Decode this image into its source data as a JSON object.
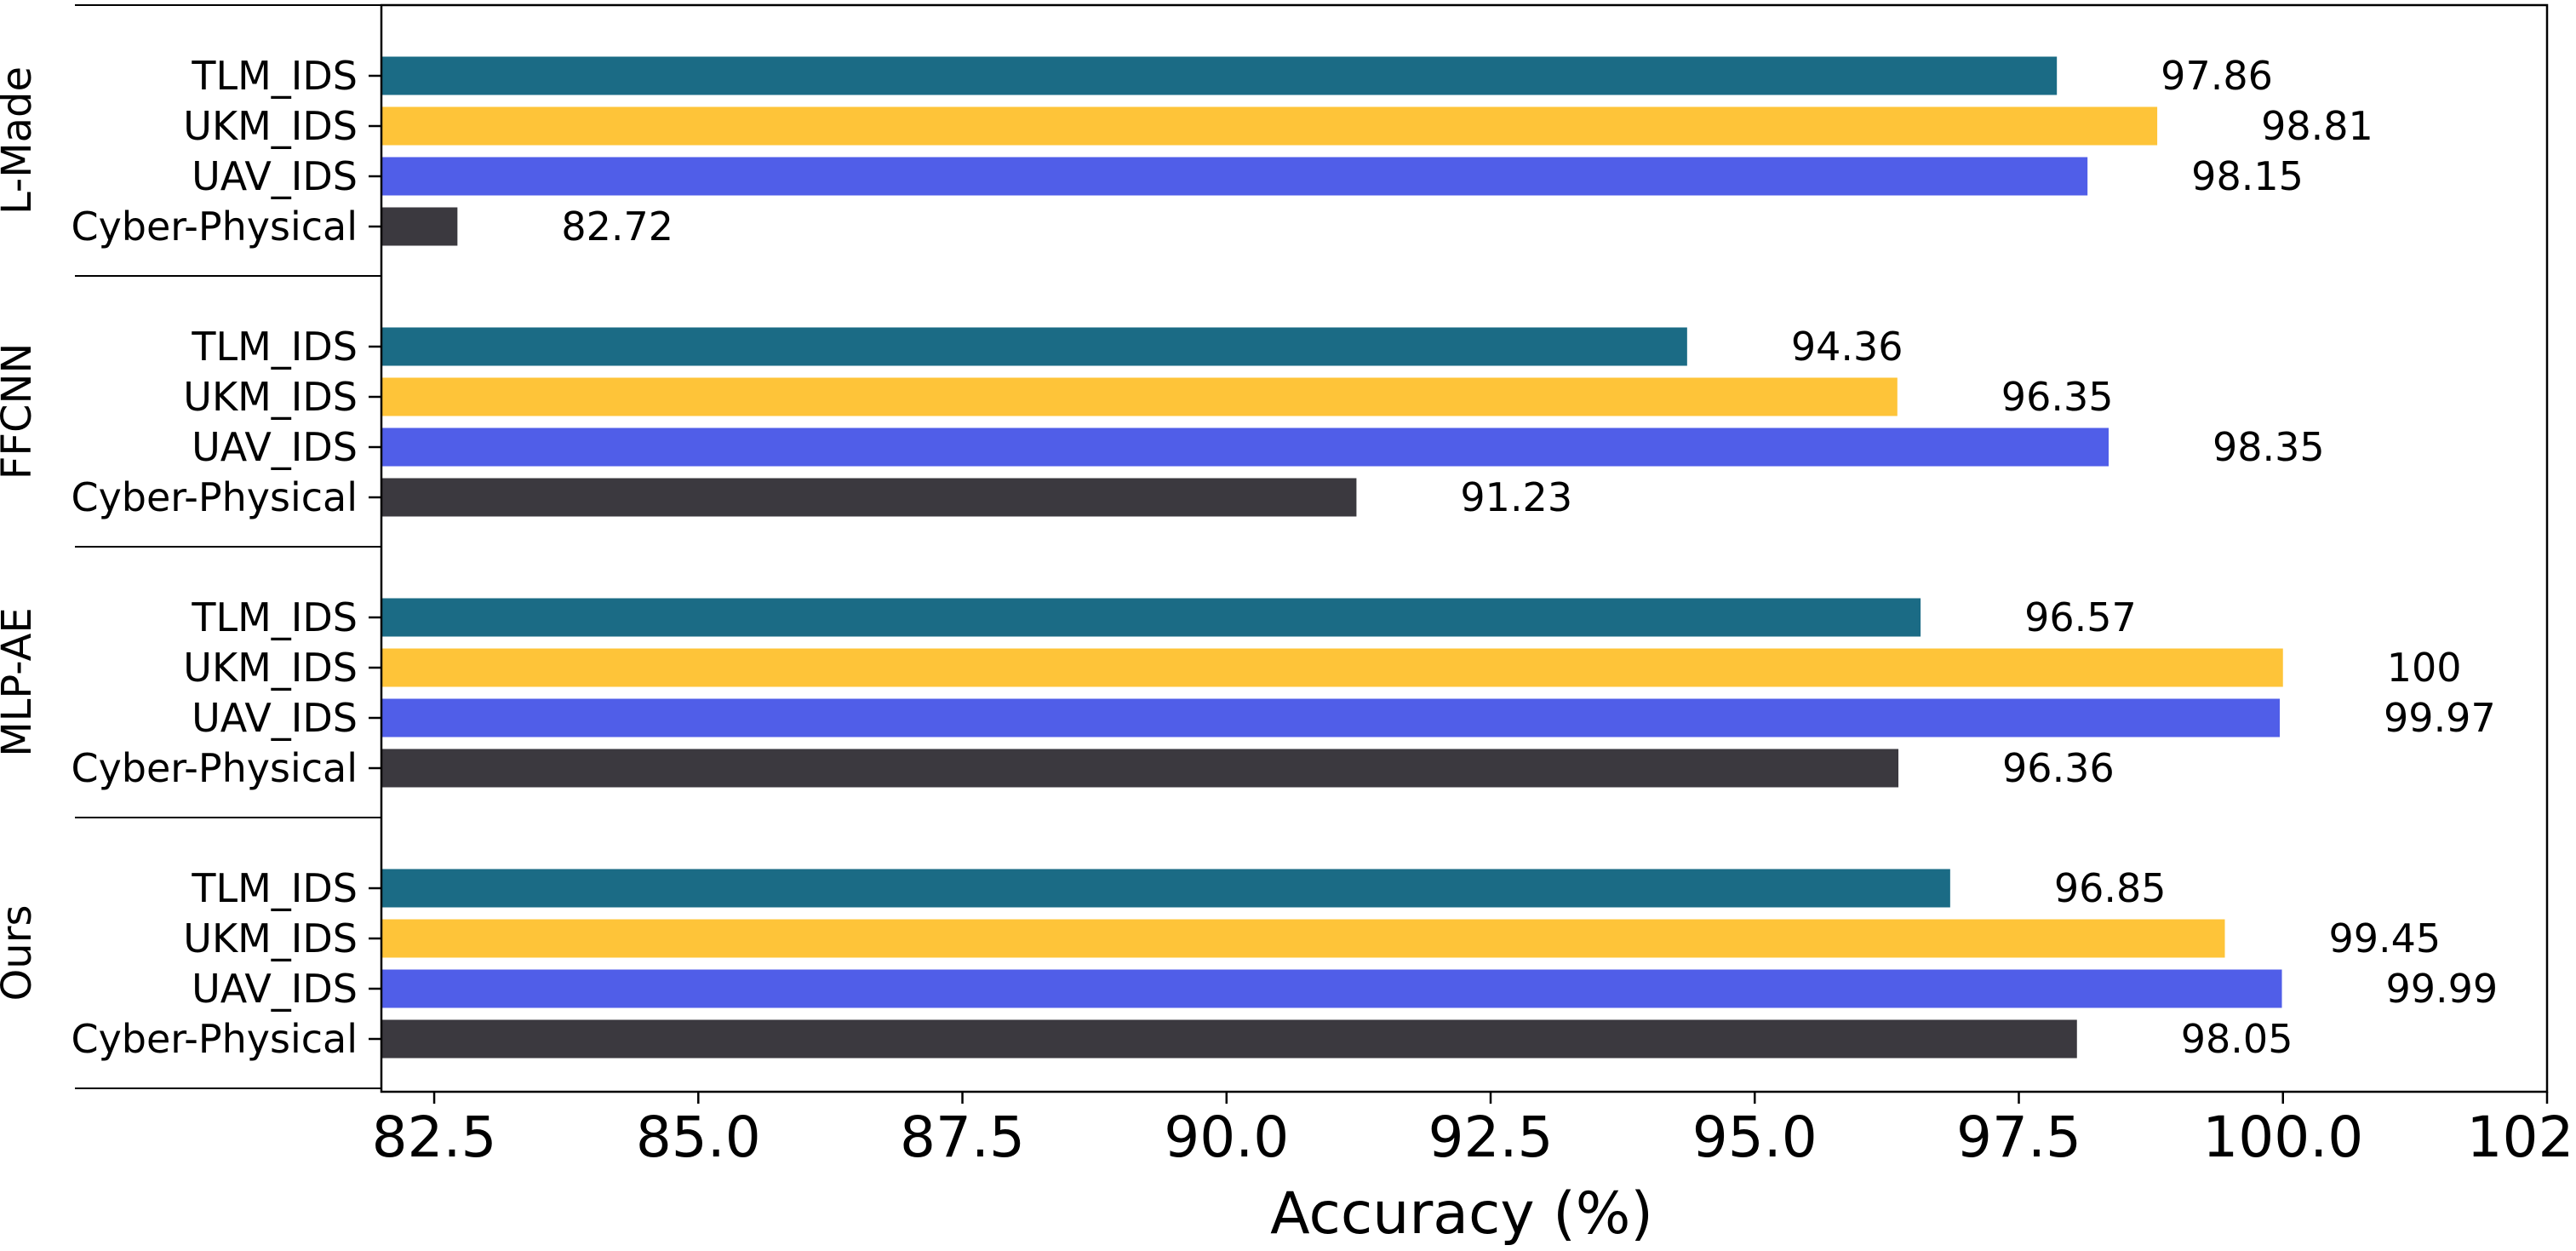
{
  "chart_data": {
    "type": "bar",
    "orientation": "horizontal",
    "xlabel": "Accuracy (%)",
    "ylabel": "",
    "xlim": [
      82,
      102.5
    ],
    "xticks": [
      "82.5",
      "85.0",
      "87.5",
      "90.0",
      "92.5",
      "95.0",
      "97.5",
      "100.0",
      "102.5"
    ],
    "xtick_values": [
      82.5,
      85.0,
      87.5,
      90.0,
      92.5,
      95.0,
      97.5,
      100.0,
      102.5
    ],
    "grid": false,
    "legend": "none",
    "categories": [
      "TLM_IDS",
      "UKM_IDS",
      "UAV_IDS",
      "Cyber-Physical"
    ],
    "category_colors": [
      "#1b6b85",
      "#fec439",
      "#505ee8",
      "#3b393f"
    ],
    "groups": [
      {
        "name": "L-Made",
        "values": [
          97.86,
          98.81,
          98.15,
          82.72
        ],
        "labels": [
          "97.86",
          "98.81",
          "98.15",
          "82.72"
        ]
      },
      {
        "name": "FFCNN",
        "values": [
          94.36,
          96.35,
          98.35,
          91.23
        ],
        "labels": [
          "94.36",
          "96.35",
          "98.35",
          "91.23"
        ]
      },
      {
        "name": "MLP-AE",
        "values": [
          96.57,
          100,
          99.97,
          96.36
        ],
        "labels": [
          "96.57",
          "100",
          "99.97",
          "96.36"
        ]
      },
      {
        "name": "Ours",
        "values": [
          96.85,
          99.45,
          99.99,
          98.05
        ],
        "labels": [
          "96.85",
          "99.45",
          "99.99",
          "98.05"
        ]
      }
    ]
  }
}
